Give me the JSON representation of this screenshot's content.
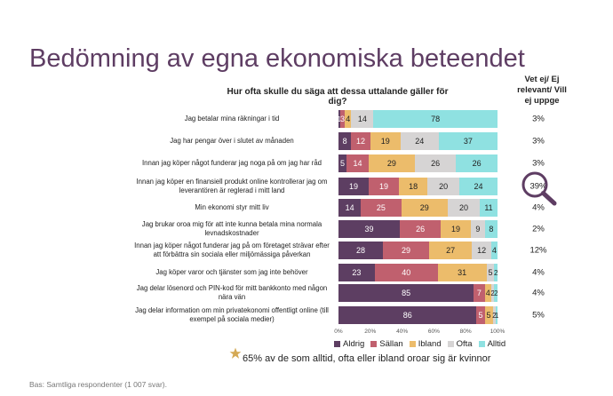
{
  "title": "Bedömning av egna ekonomiska beteendet",
  "question": "Hur ofta skulle du säga att dessa uttalande gäller för dig?",
  "dk_header": "Vet ej/ Ej relevant/ Vill ej uppge",
  "note": "65% av de som alltid, ofta eller ibland oroar sig är kvinnor",
  "base": "Bas: Samtliga respondenter (1 007 svar).",
  "icons": {
    "star": "star-icon",
    "magnifier": "magnifier-icon"
  },
  "colors": {
    "Aldrig": "#5d3e62",
    "Sällan": "#c0606e",
    "Ibland": "#ecbc6b",
    "Ofta": "#d6d4d4",
    "Alltid": "#8fe1e1",
    "accent": "#5e3d63",
    "star": "#d4a955"
  },
  "chart_data": {
    "type": "bar",
    "orientation": "horizontal",
    "stacked": true,
    "title": "Hur ofta skulle du säga att dessa uttalande gäller för dig?",
    "xlim": [
      0,
      100
    ],
    "xticks": [
      "0%",
      "20%",
      "40%",
      "60%",
      "80%",
      "100%"
    ],
    "legend_position": "bottom",
    "series_names": [
      "Aldrig",
      "Sällan",
      "Ibland",
      "Ofta",
      "Alltid"
    ],
    "categories": [
      {
        "label": "Jag betalar mina räkningar i tid",
        "values": [
          1,
          3,
          4,
          14,
          78
        ],
        "labels": [
          "1",
          "3",
          "4",
          "14",
          "78"
        ],
        "dk": "3%"
      },
      {
        "label": "Jag har pengar över i slutet av månaden",
        "values": [
          8,
          12,
          19,
          24,
          37
        ],
        "labels": [
          "8",
          "12",
          "19",
          "24",
          "37"
        ],
        "dk": "3%"
      },
      {
        "label": "Innan jag köper något funderar jag noga på om jag har råd",
        "values": [
          5,
          14,
          29,
          26,
          26
        ],
        "labels": [
          "5",
          "14",
          "29",
          "26",
          "26"
        ],
        "dk": "3%"
      },
      {
        "label": "Innan jag köper en finansiell produkt online kontrollerar jag om leverantören är reglerad i mitt land",
        "values": [
          19,
          19,
          18,
          20,
          24
        ],
        "labels": [
          "19",
          "19",
          "18",
          "20",
          "24"
        ],
        "dk": "39%"
      },
      {
        "label": "Min ekonomi styr mitt liv",
        "values": [
          14,
          25,
          29,
          20,
          11
        ],
        "labels": [
          "14",
          "25",
          "29",
          "20",
          "11"
        ],
        "dk": "4%"
      },
      {
        "label": "Jag brukar oroa mig för att inte kunna betala mina normala levnadskostnader",
        "values": [
          39,
          26,
          19,
          9,
          8
        ],
        "labels": [
          "39",
          "26",
          "19",
          "9",
          "8"
        ],
        "dk": "2%"
      },
      {
        "label": "Innan jag köper något funderar jag på om företaget strävar efter att förbättra sin sociala eller miljömässiga påverkan",
        "values": [
          28,
          29,
          27,
          12,
          4
        ],
        "labels": [
          "28",
          "29",
          "27",
          "12",
          "4"
        ],
        "dk": "12%"
      },
      {
        "label": "Jag köper varor och tjänster som jag inte behöver",
        "values": [
          23,
          40,
          31,
          5,
          2
        ],
        "labels": [
          "23",
          "40",
          "31",
          "5",
          "2"
        ],
        "dk": "4%"
      },
      {
        "label": "Jag delar lösenord och PIN-kod för mitt bankkonto med någon nära vän",
        "values": [
          85,
          7,
          4,
          2,
          2
        ],
        "labels": [
          "85",
          "7",
          "4",
          "2",
          "2"
        ],
        "dk": "4%"
      },
      {
        "label": "Jag delar information om min privatekonomi offentligt online (till exempel på sociala medier)",
        "values": [
          86,
          5,
          5,
          2,
          1
        ],
        "labels": [
          "86",
          "5",
          "5",
          "2",
          "1"
        ],
        "dk": "5%"
      }
    ]
  }
}
